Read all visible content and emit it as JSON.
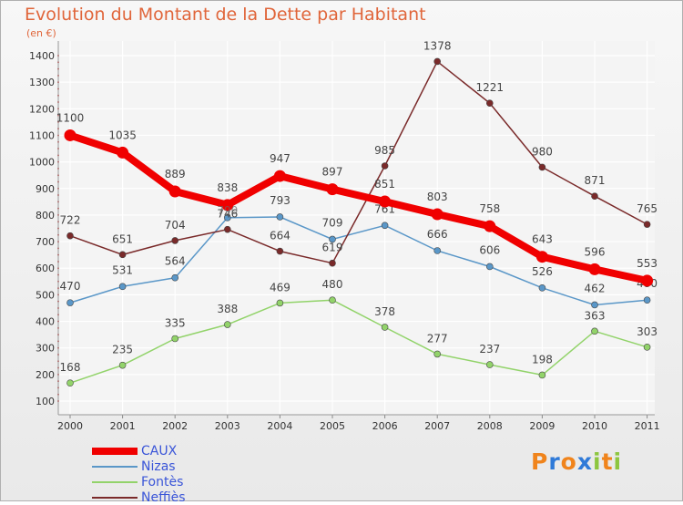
{
  "chart_data": {
    "type": "line",
    "title": "Evolution du Montant de la Dette par Habitant",
    "subtitle": "(en €)",
    "xlabel": "",
    "ylabel": "",
    "categories": [
      "2000",
      "2001",
      "2002",
      "2003",
      "2004",
      "2005",
      "2006",
      "2007",
      "2008",
      "2009",
      "2010",
      "2011"
    ],
    "ylim": [
      100,
      1400
    ],
    "yticks": [
      100,
      200,
      300,
      400,
      500,
      600,
      700,
      800,
      900,
      1000,
      1100,
      1200,
      1300,
      1400
    ],
    "grid": true,
    "legend_position": "bottom-left",
    "series": [
      {
        "name": "Nizas",
        "color": "#5a97c8",
        "values": [
          470,
          531,
          564,
          790,
          793,
          709,
          761,
          666,
          606,
          526,
          462,
          480
        ],
        "labels": [
          "470",
          "531",
          "564",
          "",
          "793",
          "709",
          "761",
          "666",
          "606",
          "526",
          "462",
          "480"
        ]
      },
      {
        "name": "Fontès",
        "color": "#92d36a",
        "values": [
          168,
          235,
          335,
          388,
          469,
          480,
          378,
          277,
          237,
          198,
          363,
          303
        ],
        "labels": [
          "168",
          "235",
          "335",
          "388",
          "469",
          "480",
          "378",
          "277",
          "237",
          "198",
          "363",
          "303"
        ]
      },
      {
        "name": "Neffiès",
        "color": "#7a2a2a",
        "values": [
          722,
          651,
          704,
          746,
          664,
          619,
          985,
          1378,
          1221,
          980,
          871,
          765
        ],
        "labels": [
          "722",
          "651",
          "704",
          "746",
          "664",
          "619",
          "985",
          "1378",
          "1221",
          "980",
          "871",
          "765"
        ]
      },
      {
        "name": "CAUX",
        "color": "#f00000",
        "values": [
          1100,
          1035,
          889,
          838,
          947,
          897,
          851,
          803,
          758,
          643,
          596,
          553
        ],
        "labels": [
          "1100",
          "1035",
          "889",
          "838",
          "947",
          "897",
          "851",
          "803",
          "758",
          "643",
          "596",
          "553"
        ]
      }
    ],
    "legend_order": [
      "CAUX",
      "Nizas",
      "Fontès",
      "Neffiès"
    ]
  },
  "logo": {
    "letters": [
      "P",
      "r",
      "o",
      "x",
      "i",
      "t",
      "i"
    ],
    "colors": [
      "#f0841c",
      "#2f7ad8",
      "#f0841c",
      "#2f7ad8",
      "#8dc63f",
      "#f0841c",
      "#8dc63f"
    ]
  }
}
